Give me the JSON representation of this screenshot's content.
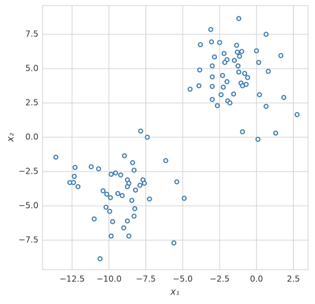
{
  "chart_data": {
    "type": "scatter",
    "xlabel": "x₁",
    "ylabel": "x₂",
    "color": "#3a78ad",
    "grid": true,
    "xlim": [
      -14.5,
      3.5
    ],
    "ylim": [
      -9.65,
      9.6
    ],
    "xticks": [
      {
        "value": -12.5,
        "label": "−12.5"
      },
      {
        "value": -10,
        "label": "−10.0"
      },
      {
        "value": -7.5,
        "label": "−7.5"
      },
      {
        "value": -5,
        "label": "−5.0"
      },
      {
        "value": -2.5,
        "label": "−2.5"
      },
      {
        "value": 0,
        "label": "0.0"
      },
      {
        "value": 2.5,
        "label": "2.5"
      }
    ],
    "yticks": [
      {
        "value": -7.5,
        "label": "−7.5"
      },
      {
        "value": -5,
        "label": "−5.0"
      },
      {
        "value": -2.5,
        "label": "−2.5"
      },
      {
        "value": 0,
        "label": "0.0"
      },
      {
        "value": 2.5,
        "label": "2.5"
      },
      {
        "value": 5,
        "label": "5.0"
      },
      {
        "value": 7.5,
        "label": "7.5"
      }
    ],
    "x": [
      -1.2,
      -3.1,
      0.65,
      -3.05,
      -2.5,
      -3.8,
      -1.35,
      0.0,
      -2.2,
      -1.3,
      -1.0,
      -1.15,
      1.65,
      -2.85,
      -1.5,
      -2.0,
      -2.15,
      0.15,
      -1.25,
      -3.0,
      -3.85,
      0.8,
      -1.2,
      -0.8,
      -2.3,
      -0.6,
      -3.0,
      -2.0,
      -1.05,
      -0.7,
      -0.95,
      -2.25,
      -3.0,
      -3.9,
      -4.5,
      -1.55,
      -2.4,
      0.2,
      1.85,
      -3.0,
      -1.95,
      -1.8,
      -2.65,
      0.65,
      2.75,
      -0.95,
      1.3,
      0.1,
      -7.85,
      -7.4,
      -13.6,
      -6.15,
      -8.95,
      -11.2,
      -12.3,
      -10.7,
      -8.4,
      -8.3,
      -9.55,
      -9.85,
      -9.2,
      -8.75,
      -12.35,
      -12.65,
      -12.4,
      -12.1,
      -7.7,
      -7.6,
      -7.9,
      -8.65,
      -8.75,
      -5.4,
      -8.2,
      -10.4,
      -10.15,
      -9.4,
      -9.1,
      -9.9,
      -8.45,
      -7.25,
      -4.9,
      -8.25,
      -10.2,
      -9.95,
      -8.3,
      -11.0,
      -8.75,
      -9.75,
      -9.0,
      -9.85,
      -8.65,
      -5.6,
      -10.6
    ],
    "values": [
      8.65,
      7.85,
      7.5,
      6.95,
      6.9,
      6.75,
      6.7,
      6.3,
      6.1,
      6.2,
      6.25,
      5.9,
      5.95,
      5.85,
      5.6,
      5.65,
      5.45,
      5.45,
      5.2,
      5.2,
      4.9,
      4.8,
      4.75,
      4.65,
      4.5,
      4.35,
      4.4,
      4.05,
      3.95,
      3.85,
      3.75,
      3.65,
      3.7,
      3.75,
      3.5,
      3.15,
      3.1,
      3.1,
      2.9,
      2.75,
      2.65,
      2.5,
      2.3,
      2.25,
      1.65,
      0.4,
      0.3,
      -0.15,
      0.45,
      0.0,
      -1.45,
      -1.7,
      -1.35,
      -2.15,
      -2.2,
      -2.3,
      -1.85,
      -2.4,
      -2.6,
      -2.7,
      -2.75,
      -3.1,
      -2.85,
      -3.3,
      -3.3,
      -3.6,
      -3.1,
      -3.35,
      -3.5,
      -3.35,
      -3.6,
      -3.25,
      -3.85,
      -3.9,
      -4.15,
      -4.1,
      -4.25,
      -4.4,
      -4.6,
      -4.5,
      -4.45,
      -5.2,
      -5.1,
      -5.4,
      -5.75,
      -5.95,
      -6.1,
      -6.15,
      -6.6,
      -7.2,
      -7.2,
      -7.7,
      -8.85
    ]
  }
}
